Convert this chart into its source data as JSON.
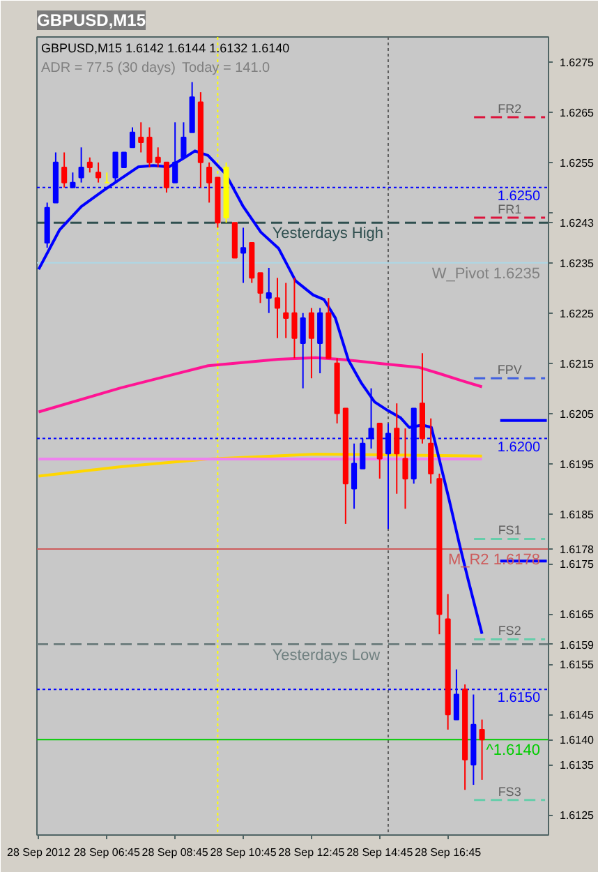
{
  "chart_data": {
    "type": "candlestick",
    "title": "GBPUSD,M15",
    "annotations": [
      "GBPUSD,M15 1.6142 1.6144 1.6132 1.6140",
      "ADR = 77.5 (30 days)",
      "Today = 141.0"
    ],
    "x": [
      "2012-09-28T05:00",
      "2012-09-28T05:15",
      "2012-09-28T05:30",
      "2012-09-28T05:45",
      "2012-09-28T06:00",
      "2012-09-28T06:15",
      "2012-09-28T06:30",
      "2012-09-28T06:45",
      "2012-09-28T07:00",
      "2012-09-28T07:15",
      "2012-09-28T07:30",
      "2012-09-28T07:45",
      "2012-09-28T08:00",
      "2012-09-28T08:15",
      "2012-09-28T08:30",
      "2012-09-28T08:45",
      "2012-09-28T09:00",
      "2012-09-28T09:15",
      "2012-09-28T09:30",
      "2012-09-28T09:45",
      "2012-09-28T10:00",
      "2012-09-28T10:15",
      "2012-09-28T10:30",
      "2012-09-28T10:45",
      "2012-09-28T11:00",
      "2012-09-28T11:15",
      "2012-09-28T11:30",
      "2012-09-28T11:45",
      "2012-09-28T12:00",
      "2012-09-28T12:15",
      "2012-09-28T12:30",
      "2012-09-28T12:45",
      "2012-09-28T13:00",
      "2012-09-28T13:15",
      "2012-09-28T13:30",
      "2012-09-28T13:45",
      "2012-09-28T14:00",
      "2012-09-28T14:15",
      "2012-09-28T14:30",
      "2012-09-28T14:45",
      "2012-09-28T15:00",
      "2012-09-28T15:15",
      "2012-09-28T15:30",
      "2012-09-28T15:45",
      "2012-09-28T16:00",
      "2012-09-28T16:15",
      "2012-09-28T16:30",
      "2012-09-28T16:45",
      "2012-09-28T17:00",
      "2012-09-28T17:15",
      "2012-09-28T17:30",
      "2012-09-28T17:45"
    ],
    "ohlc": [
      [
        1.6239,
        1.6247,
        1.6238,
        1.6246
      ],
      [
        1.6247,
        1.6257,
        1.6247,
        1.6255
      ],
      [
        1.6254,
        1.6257,
        1.625,
        1.6251
      ],
      [
        1.625,
        1.6253,
        1.625,
        1.6251
      ],
      [
        1.6252,
        1.6258,
        1.6251,
        1.6254
      ],
      [
        1.6255,
        1.6256,
        1.6253,
        1.6254
      ],
      [
        1.6253,
        1.6255,
        1.6251,
        1.6252
      ],
      [
        1.6251,
        1.6253,
        1.6251,
        1.6251
      ],
      [
        1.6252,
        1.6257,
        1.6251,
        1.6257
      ],
      [
        1.6254,
        1.6257,
        1.6254,
        1.6257
      ],
      [
        1.6258,
        1.6262,
        1.6258,
        1.6261
      ],
      [
        1.626,
        1.6263,
        1.6257,
        1.6259
      ],
      [
        1.626,
        1.6262,
        1.6254,
        1.6255
      ],
      [
        1.6256,
        1.6258,
        1.6254,
        1.6255
      ],
      [
        1.6255,
        1.6255,
        1.6249,
        1.625
      ],
      [
        1.6251,
        1.6263,
        1.6251,
        1.6255
      ],
      [
        1.6256,
        1.6263,
        1.6256,
        1.626
      ],
      [
        1.6261,
        1.6271,
        1.6261,
        1.6268
      ],
      [
        1.6267,
        1.6269,
        1.625,
        1.6255
      ],
      [
        1.6254,
        1.6255,
        1.6247,
        1.6251
      ],
      [
        1.6252,
        1.6252,
        1.6242,
        1.6243
      ],
      [
        1.6244,
        1.6255,
        1.6243,
        1.6254
      ],
      [
        1.6243,
        1.6243,
        1.6236,
        1.6236
      ],
      [
        1.6237,
        1.6242,
        1.6231,
        1.6238
      ],
      [
        1.6239,
        1.6239,
        1.6231,
        1.6232
      ],
      [
        1.6233,
        1.6233,
        1.6227,
        1.6229
      ],
      [
        1.6228,
        1.6234,
        1.6225,
        1.6229
      ],
      [
        1.6228,
        1.6232,
        1.622,
        1.6226
      ],
      [
        1.6225,
        1.6231,
        1.622,
        1.6224
      ],
      [
        1.6225,
        1.6232,
        1.6216,
        1.622
      ],
      [
        1.6219,
        1.6225,
        1.621,
        1.6224
      ],
      [
        1.6225,
        1.6226,
        1.6212,
        1.622
      ],
      [
        1.6219,
        1.6226,
        1.6213,
        1.6225
      ],
      [
        1.6225,
        1.6228,
        1.6216,
        1.6216
      ],
      [
        1.6215,
        1.6216,
        1.6203,
        1.6205
      ],
      [
        1.6206,
        1.6206,
        1.6183,
        1.6191
      ],
      [
        1.619,
        1.6199,
        1.6186,
        1.6195
      ],
      [
        1.6194,
        1.62,
        1.6194,
        1.6199
      ],
      [
        1.62,
        1.621,
        1.6198,
        1.6202
      ],
      [
        1.6203,
        1.6203,
        1.6192,
        1.6196
      ],
      [
        1.6197,
        1.6203,
        1.6182,
        1.6201
      ],
      [
        1.6202,
        1.6207,
        1.6189,
        1.6197
      ],
      [
        1.6196,
        1.6202,
        1.6186,
        1.6192
      ],
      [
        1.6192,
        1.6206,
        1.6191,
        1.6206
      ],
      [
        1.6207,
        1.6217,
        1.6199,
        1.62
      ],
      [
        1.6199,
        1.6204,
        1.6191,
        1.6193
      ],
      [
        1.6192,
        1.6193,
        1.6161,
        1.6165
      ],
      [
        1.6164,
        1.6169,
        1.6142,
        1.6145
      ],
      [
        1.6144,
        1.6154,
        1.6144,
        1.6149
      ],
      [
        1.615,
        1.6151,
        1.613,
        1.6136
      ],
      [
        1.6135,
        1.6149,
        1.6131,
        1.6143
      ],
      [
        1.6142,
        1.6144,
        1.6132,
        1.614
      ]
    ],
    "colors": [
      "#0000ff",
      "#0000ff",
      "#ff0000",
      "#0000ff",
      "#0000ff",
      "#ff0000",
      "#ff0000",
      "#ffff00",
      "#0000ff",
      "#0000ff",
      "#0000ff",
      "#ff0000",
      "#ff0000",
      "#ff0000",
      "#ff0000",
      "#0000ff",
      "#0000ff",
      "#0000ff",
      "#ff0000",
      "#ff0000",
      "#ff0000",
      "#ffff00",
      "#ff0000",
      "#0000ff",
      "#ff0000",
      "#ff0000",
      "#0000ff",
      "#ff0000",
      "#ff0000",
      "#ff0000",
      "#0000ff",
      "#ff0000",
      "#0000ff",
      "#ff0000",
      "#ff0000",
      "#ff0000",
      "#0000ff",
      "#0000ff",
      "#0000ff",
      "#ff0000",
      "#0000ff",
      "#ff0000",
      "#ff0000",
      "#0000ff",
      "#ff0000",
      "#ff0000",
      "#ff0000",
      "#ff0000",
      "#0000ff",
      "#ff0000",
      "#0000ff",
      "#ff0000"
    ],
    "xlim": [
      "2012-09-28T04:42",
      "2012-09-28T19:42"
    ],
    "ylim": [
      1.6121,
      1.628
    ],
    "xticks": [
      {
        "value": "2012-09-28T04:45",
        "label": "28 Sep 2012"
      },
      {
        "value": "2012-09-28T06:45",
        "label": "28 Sep 06:45"
      },
      {
        "value": "2012-09-28T08:45",
        "label": "28 Sep 08:45"
      },
      {
        "value": "2012-09-28T10:45",
        "label": "28 Sep 10:45"
      },
      {
        "value": "2012-09-28T12:45",
        "label": "28 Sep 12:45"
      },
      {
        "value": "2012-09-28T14:45",
        "label": "28 Sep 14:45"
      },
      {
        "value": "2012-09-28T16:45",
        "label": "28 Sep 16:45"
      }
    ],
    "yticks": [
      1.6125,
      1.6135,
      {
        "value": 1.614,
        "label": "1.6140"
      },
      1.6145,
      1.6155,
      1.6159,
      1.6165,
      1.6175,
      1.6178,
      1.6185,
      1.6195,
      1.6205,
      1.6215,
      1.6225,
      1.6235,
      1.6243,
      {
        "value": 1.6245,
        "label": null
      },
      1.6255,
      1.6265,
      1.6275
    ],
    "series": [
      {
        "type": "line",
        "color": "#ffd700",
        "x": [
          "2012-09-28T04:45",
          "2012-09-28T07:10",
          "2012-09-28T09:43",
          "2012-09-28T12:52",
          "2012-09-28T17:45"
        ],
        "values": [
          1.61925,
          1.61944,
          1.61959,
          1.61969,
          1.61965
        ]
      },
      {
        "type": "line",
        "color": "#ee82ee",
        "x": [
          "2012-09-28T04:45",
          "2012-09-28T17:45"
        ],
        "values": [
          1.61959,
          1.61959
        ]
      },
      {
        "type": "line",
        "color": "#ff1493",
        "x": [
          "2012-09-28T04:45",
          "2012-09-28T07:10",
          "2012-09-28T09:43",
          "2012-09-28T11:47",
          "2012-09-28T12:52",
          "2012-09-28T13:34",
          "2012-09-28T14:51",
          "2012-09-28T15:53",
          "2012-09-28T16:31",
          "2012-09-28T17:10",
          "2012-09-28T17:45"
        ],
        "values": [
          1.62053,
          1.62101,
          1.62145,
          1.62158,
          1.62161,
          1.62158,
          1.62149,
          1.62142,
          1.62129,
          1.62115,
          1.62103
        ]
      },
      {
        "type": "line",
        "color": "#0000ff",
        "x": [
          "2012-09-28T04:45",
          "2012-09-28T05:22",
          "2012-09-28T06:00",
          "2012-09-28T06:39",
          "2012-09-28T07:10",
          "2012-09-28T07:40",
          "2012-09-28T08:07",
          "2012-09-28T08:34",
          "2012-09-28T09:01",
          "2012-09-28T09:20",
          "2012-09-28T09:43",
          "2012-09-28T10:14",
          "2012-09-28T10:45",
          "2012-09-28T11:16",
          "2012-09-28T11:47",
          "2012-09-28T12:17",
          "2012-09-28T12:48",
          "2012-09-28T13:07",
          "2012-09-28T13:27",
          "2012-09-28T13:50",
          "2012-09-28T14:13",
          "2012-09-28T14:36",
          "2012-09-28T14:59",
          "2012-09-28T15:22",
          "2012-09-28T15:37",
          "2012-09-28T16:00",
          "2012-09-28T16:16",
          "2012-09-28T16:31",
          "2012-09-28T16:47",
          "2012-09-28T17:06",
          "2012-09-28T17:21",
          "2012-09-28T17:45"
        ],
        "values": [
          1.62337,
          1.62416,
          1.62462,
          1.62494,
          1.62518,
          1.62541,
          1.62544,
          1.62541,
          1.62559,
          1.62573,
          1.62564,
          1.62527,
          1.62462,
          1.62411,
          1.62379,
          1.62314,
          1.62286,
          1.62277,
          1.6224,
          1.62156,
          1.6211,
          1.62073,
          1.62056,
          1.62041,
          1.62022,
          1.62027,
          1.62022,
          1.61953,
          1.61879,
          1.61786,
          1.61717,
          1.61611
        ]
      },
      {
        "type": "line",
        "name": "FR2",
        "color": "#dc143c",
        "line_style": "dashed",
        "x": [
          "2012-09-28T17:31",
          "2012-09-28T19:36"
        ],
        "values": [
          1.6264,
          1.6264
        ]
      },
      {
        "type": "line",
        "name": "FR1",
        "color": "#dc143c",
        "line_style": "dashed",
        "x": [
          "2012-09-28T17:31",
          "2012-09-28T19:36"
        ],
        "values": [
          1.6244,
          1.6244
        ]
      },
      {
        "type": "line",
        "name": "FPV",
        "color": "#4060e0",
        "line_style": "dashed",
        "x": [
          "2012-09-28T17:31",
          "2012-09-28T19:36"
        ],
        "values": [
          1.6212,
          1.6212
        ]
      },
      {
        "type": "line",
        "name": "FS1",
        "color": "#66cdaa",
        "line_style": "dashed",
        "x": [
          "2012-09-28T17:31",
          "2012-09-28T19:36"
        ],
        "values": [
          1.618,
          1.618
        ]
      },
      {
        "type": "line",
        "name": "FS2",
        "color": "#66cdaa",
        "line_style": "dashed",
        "x": [
          "2012-09-28T17:31",
          "2012-09-28T19:36"
        ],
        "values": [
          1.616,
          1.616
        ]
      },
      {
        "type": "line",
        "name": "FS3",
        "color": "#66cdaa",
        "line_style": "dashed",
        "x": [
          "2012-09-28T17:31",
          "2012-09-28T19:36"
        ],
        "values": [
          1.6128,
          1.6128
        ]
      },
      {
        "type": "line",
        "color": "#0000ff",
        "x": [
          "2012-09-28T18:17",
          "2012-09-28T19:39"
        ],
        "values": [
          1.62036,
          1.62036
        ]
      },
      {
        "type": "line",
        "color": "#0000ff",
        "x": [
          "2012-09-28T18:17",
          "2012-09-28T19:39"
        ],
        "values": [
          1.61756,
          1.61756
        ]
      }
    ],
    "ref_lines": [
      {
        "axis": "x",
        "value": "2012-09-28T10:00",
        "color": "#ffff00",
        "line_style": "dotted"
      },
      {
        "axis": "x",
        "value": "2012-09-28T15:00",
        "color": "#606060",
        "line_style": "dotted"
      },
      {
        "axis": "y",
        "value": 1.625,
        "label": "1.6250",
        "color": "#0000ff",
        "line_style": "dotted"
      },
      {
        "axis": "y",
        "value": 1.62,
        "label": "1.6200",
        "color": "#0000ff",
        "line_style": "dotted"
      },
      {
        "axis": "y",
        "value": 1.615,
        "label": "1.6150",
        "color": "#0000ff",
        "line_style": "dotted"
      },
      {
        "axis": "y",
        "value": 1.6243,
        "label": "Yesterdays High",
        "color": "#2f4f4f",
        "line_style": "dashed"
      },
      {
        "axis": "y",
        "value": 1.6159,
        "label": "Yesterdays Low",
        "color": "#708080",
        "line_style": "dashed"
      },
      {
        "axis": "y",
        "value": 1.6235,
        "label": "W_Pivot 1.6235",
        "color": "#add8e6",
        "line_style": "solid"
      },
      {
        "axis": "y",
        "value": 1.6178,
        "label": "M_R2 1.6178",
        "color": "#cd5c5c",
        "line_style": "solid"
      },
      {
        "axis": "y",
        "value": 1.614,
        "label": "^1.6140",
        "color": "#00cc00",
        "line_style": "solid"
      }
    ]
  }
}
